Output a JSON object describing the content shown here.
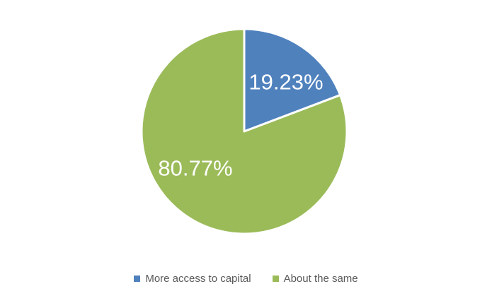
{
  "chart_data": {
    "type": "pie",
    "title": "",
    "slices": [
      {
        "label": "More access to capital",
        "value": 19.23,
        "data_label": "19.23%",
        "color": "#4f81bd"
      },
      {
        "label": "About the same",
        "value": 80.77,
        "data_label": "80.77%",
        "color": "#9bbb59"
      }
    ],
    "start_angle_deg": 0,
    "direction": "clockwise",
    "slice_border_color": "#ffffff",
    "data_label_color": "#ffffff",
    "legend_position": "bottom",
    "legend_text_color": "#595959",
    "background": "#ffffff"
  }
}
